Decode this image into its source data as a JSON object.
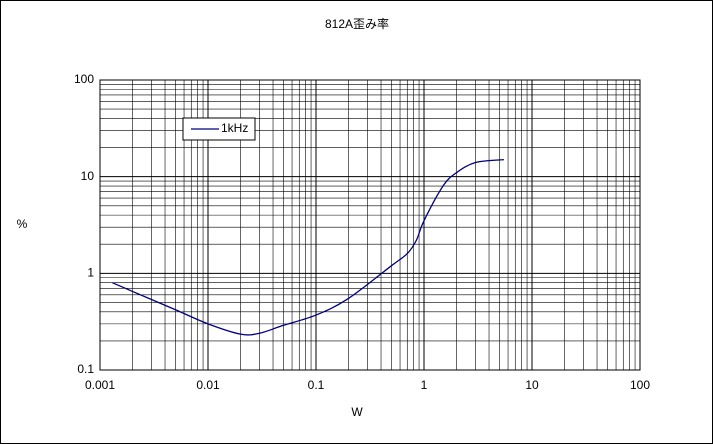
{
  "chart_data": {
    "type": "line",
    "title": "812A歪み率",
    "xlabel": "W",
    "ylabel": "%",
    "xscale": "log",
    "yscale": "log",
    "grid": true,
    "minor_grid": true,
    "legend": "upper left",
    "xlim": [
      0.001,
      100
    ],
    "ylim": [
      0.1,
      100
    ],
    "xticks": [
      0.001,
      0.01,
      0.1,
      1,
      10,
      100
    ],
    "yticks": [
      0.1,
      1,
      10,
      100
    ],
    "series": [
      {
        "name": "1kHz",
        "color": "#000080",
        "x": [
          0.0013,
          0.002,
          0.005,
          0.01,
          0.02,
          0.03,
          0.05,
          0.1,
          0.2,
          0.5,
          0.7,
          0.85,
          1,
          1.5,
          2,
          3,
          5.5
        ],
        "values": [
          0.8,
          0.65,
          0.42,
          0.3,
          0.235,
          0.24,
          0.29,
          0.37,
          0.55,
          1.2,
          1.6,
          2.2,
          3.5,
          8,
          11,
          14,
          15
        ]
      }
    ]
  }
}
